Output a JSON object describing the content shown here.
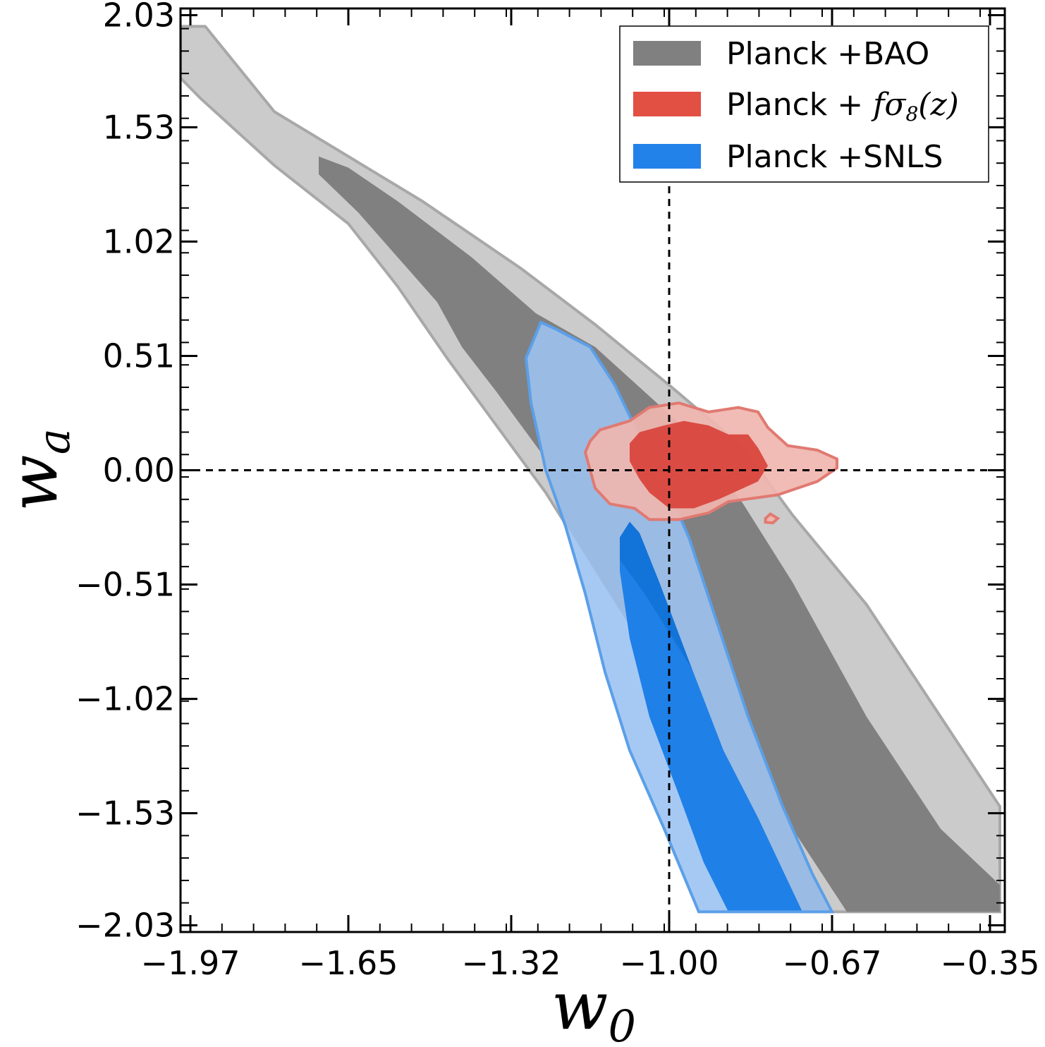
{
  "chart_data": {
    "type": "contour",
    "xlabel": {
      "base": "w",
      "sub": "0"
    },
    "ylabel": {
      "base": "w",
      "sub": "a"
    },
    "xlim": [
      -1.99,
      -0.32
    ],
    "ylim": [
      -2.06,
      2.06
    ],
    "xticks": [
      -1.97,
      -1.65,
      -1.32,
      -1.0,
      -0.67,
      -0.35
    ],
    "xtick_labels": [
      "−1.97",
      "−1.65",
      "−1.32",
      "−1.00",
      "−0.67",
      "−0.35"
    ],
    "yticks": [
      2.03,
      1.53,
      1.02,
      0.51,
      0.0,
      -0.51,
      -1.02,
      -1.53,
      -2.03
    ],
    "ytick_labels": [
      "2.03",
      "1.53",
      "1.02",
      "0.51",
      "0.00",
      "−0.51",
      "−1.02",
      "−1.53",
      "−2.03"
    ],
    "reference_lines": {
      "x": -1.0,
      "y": 0.0,
      "style": "dashed"
    },
    "legend": {
      "placement": "top-right",
      "entries": [
        {
          "label": "Planck +BAO",
          "color": "#808080"
        },
        {
          "label_prefix": "Planck + ",
          "label_math": "fσ",
          "label_math_sub": "8",
          "label_math_suffix": "(z)",
          "color": "#e24f43"
        },
        {
          "label": "Planck +SNLS",
          "color": "#2382ea"
        }
      ]
    },
    "series": [
      {
        "name": "Planck +BAO",
        "colors": {
          "outer": "#cbcbcb",
          "inner": "#808080",
          "edge": "#a8a8a8"
        },
        "outer": [
          [
            -1.99,
            1.75
          ],
          [
            -1.95,
            1.66
          ],
          [
            -1.8,
            1.36
          ],
          [
            -1.65,
            1.1
          ],
          [
            -1.55,
            0.82
          ],
          [
            -1.45,
            0.5
          ],
          [
            -1.35,
            0.2
          ],
          [
            -1.25,
            -0.1
          ],
          [
            -1.15,
            -0.45
          ],
          [
            -1.05,
            -0.8
          ],
          [
            -0.95,
            -1.15
          ],
          [
            -0.85,
            -1.5
          ],
          [
            -0.76,
            -1.85
          ],
          [
            -0.73,
            -1.97
          ],
          [
            -0.33,
            -1.97
          ],
          [
            -0.33,
            -1.5
          ],
          [
            -0.45,
            -1.1
          ],
          [
            -0.6,
            -0.6
          ],
          [
            -0.75,
            -0.2
          ],
          [
            -0.85,
            0.1
          ],
          [
            -1.0,
            0.38
          ],
          [
            -1.15,
            0.65
          ],
          [
            -1.3,
            0.9
          ],
          [
            -1.5,
            1.2
          ],
          [
            -1.65,
            1.4
          ],
          [
            -1.8,
            1.6
          ],
          [
            -1.94,
            1.98
          ],
          [
            -1.99,
            1.98
          ]
        ],
        "inner": [
          [
            -1.71,
            1.4
          ],
          [
            -1.71,
            1.32
          ],
          [
            -1.63,
            1.15
          ],
          [
            -1.55,
            0.95
          ],
          [
            -1.47,
            0.75
          ],
          [
            -1.42,
            0.55
          ],
          [
            -1.35,
            0.35
          ],
          [
            -1.25,
            0.05
          ],
          [
            -1.15,
            -0.25
          ],
          [
            -1.05,
            -0.55
          ],
          [
            -0.95,
            -0.9
          ],
          [
            -0.85,
            -1.25
          ],
          [
            -0.75,
            -1.6
          ],
          [
            -0.64,
            -1.97
          ],
          [
            -0.33,
            -1.97
          ],
          [
            -0.33,
            -1.85
          ],
          [
            -0.45,
            -1.6
          ],
          [
            -0.6,
            -1.1
          ],
          [
            -0.75,
            -0.5
          ],
          [
            -0.85,
            -0.15
          ],
          [
            -0.95,
            0.15
          ],
          [
            -1.05,
            0.35
          ],
          [
            -1.15,
            0.55
          ],
          [
            -1.27,
            0.7
          ],
          [
            -1.4,
            0.95
          ],
          [
            -1.55,
            1.2
          ],
          [
            -1.65,
            1.35
          ]
        ]
      },
      {
        "name": "Planck + fσ8(z)",
        "colors": {
          "outer": "#f0b6af",
          "inner": "#d9463d",
          "edge": "#e07a72"
        },
        "outer": [
          [
            -1.16,
            0.13
          ],
          [
            -1.14,
            0.18
          ],
          [
            -1.08,
            0.22
          ],
          [
            -1.04,
            0.28
          ],
          [
            -0.98,
            0.3
          ],
          [
            -0.92,
            0.26
          ],
          [
            -0.86,
            0.28
          ],
          [
            -0.82,
            0.26
          ],
          [
            -0.8,
            0.19
          ],
          [
            -0.76,
            0.11
          ],
          [
            -0.7,
            0.09
          ],
          [
            -0.66,
            0.05
          ],
          [
            -0.66,
            0.01
          ],
          [
            -0.7,
            -0.05
          ],
          [
            -0.78,
            -0.11
          ],
          [
            -0.88,
            -0.14
          ],
          [
            -0.92,
            -0.19
          ],
          [
            -0.98,
            -0.22
          ],
          [
            -1.04,
            -0.22
          ],
          [
            -1.07,
            -0.17
          ],
          [
            -1.12,
            -0.15
          ],
          [
            -1.15,
            -0.08
          ],
          [
            -1.16,
            0.0
          ],
          [
            -1.17,
            0.08
          ]
        ],
        "inner": [
          [
            -1.08,
            0.12
          ],
          [
            -1.06,
            0.17
          ],
          [
            -1.01,
            0.2
          ],
          [
            -0.97,
            0.22
          ],
          [
            -0.92,
            0.2
          ],
          [
            -0.88,
            0.16
          ],
          [
            -0.84,
            0.16
          ],
          [
            -0.82,
            0.1
          ],
          [
            -0.8,
            0.02
          ],
          [
            -0.82,
            -0.05
          ],
          [
            -0.86,
            -0.09
          ],
          [
            -0.9,
            -0.13
          ],
          [
            -0.95,
            -0.17
          ],
          [
            -1.0,
            -0.17
          ],
          [
            -1.04,
            -0.1
          ],
          [
            -1.06,
            -0.04
          ],
          [
            -1.08,
            0.04
          ]
        ],
        "island": [
          [
            -0.805,
            -0.215
          ],
          [
            -0.795,
            -0.195
          ],
          [
            -0.78,
            -0.215
          ],
          [
            -0.79,
            -0.235
          ],
          [
            -0.805,
            -0.232
          ]
        ]
      },
      {
        "name": "Planck +SNLS",
        "colors": {
          "outer": "#9abbe3",
          "outer_lower": "#a6c9f4",
          "inner": "#1f80e8",
          "inner_upper": "#1273d9",
          "edge": "#5b9fe8"
        },
        "outer": [
          [
            -1.26,
            0.66
          ],
          [
            -1.23,
            0.63
          ],
          [
            -1.16,
            0.55
          ],
          [
            -1.11,
            0.38
          ],
          [
            -1.06,
            0.15
          ],
          [
            -1.01,
            -0.05
          ],
          [
            -0.96,
            -0.3
          ],
          [
            -0.9,
            -0.7
          ],
          [
            -0.84,
            -1.1
          ],
          [
            -0.77,
            -1.5
          ],
          [
            -0.71,
            -1.8
          ],
          [
            -0.67,
            -1.97
          ],
          [
            -0.94,
            -1.97
          ],
          [
            -1.01,
            -1.6
          ],
          [
            -1.08,
            -1.25
          ],
          [
            -1.13,
            -0.9
          ],
          [
            -1.17,
            -0.55
          ],
          [
            -1.21,
            -0.25
          ],
          [
            -1.25,
            0.0
          ],
          [
            -1.28,
            0.3
          ],
          [
            -1.29,
            0.5
          ]
        ],
        "inner": [
          [
            -1.08,
            -0.23
          ],
          [
            -1.06,
            -0.28
          ],
          [
            -1.02,
            -0.5
          ],
          [
            -0.96,
            -0.85
          ],
          [
            -0.89,
            -1.25
          ],
          [
            -0.82,
            -1.55
          ],
          [
            -0.73,
            -1.97
          ],
          [
            -0.88,
            -1.97
          ],
          [
            -0.93,
            -1.75
          ],
          [
            -0.98,
            -1.45
          ],
          [
            -1.04,
            -1.1
          ],
          [
            -1.08,
            -0.75
          ],
          [
            -1.1,
            -0.45
          ],
          [
            -1.1,
            -0.3
          ]
        ]
      }
    ]
  }
}
